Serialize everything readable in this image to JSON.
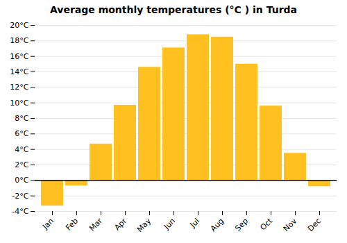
{
  "chart_data": {
    "type": "bar",
    "title": "Average monthly temperatures (°C ) in Turda",
    "categories": [
      "Jan",
      "Feb",
      "Mar",
      "Apr",
      "May",
      "Jun",
      "Jul",
      "Aug",
      "Sep",
      "Oct",
      "Nov",
      "Dec"
    ],
    "values": [
      -3.3,
      -0.7,
      4.7,
      9.7,
      14.6,
      17.1,
      18.8,
      18.5,
      15.0,
      9.6,
      3.5,
      -0.8
    ],
    "color": "#FFC020",
    "ylim": [
      -4,
      20
    ],
    "yticks": [
      {
        "value": -4,
        "label": "-4°C"
      },
      {
        "value": -2,
        "label": "-2°C"
      },
      {
        "value": 0,
        "label": "0°C"
      },
      {
        "value": 2,
        "label": "2°C"
      },
      {
        "value": 4,
        "label": "4°C"
      },
      {
        "value": 6,
        "label": "6°C"
      },
      {
        "value": 8,
        "label": "8°C"
      },
      {
        "value": 10,
        "label": "10°C"
      },
      {
        "value": 12,
        "label": "12°C"
      },
      {
        "value": 14,
        "label": "14°C"
      },
      {
        "value": 16,
        "label": "16°C"
      },
      {
        "value": 18,
        "label": "18°C"
      },
      {
        "value": 20,
        "label": "20°C"
      }
    ],
    "grid": true
  }
}
